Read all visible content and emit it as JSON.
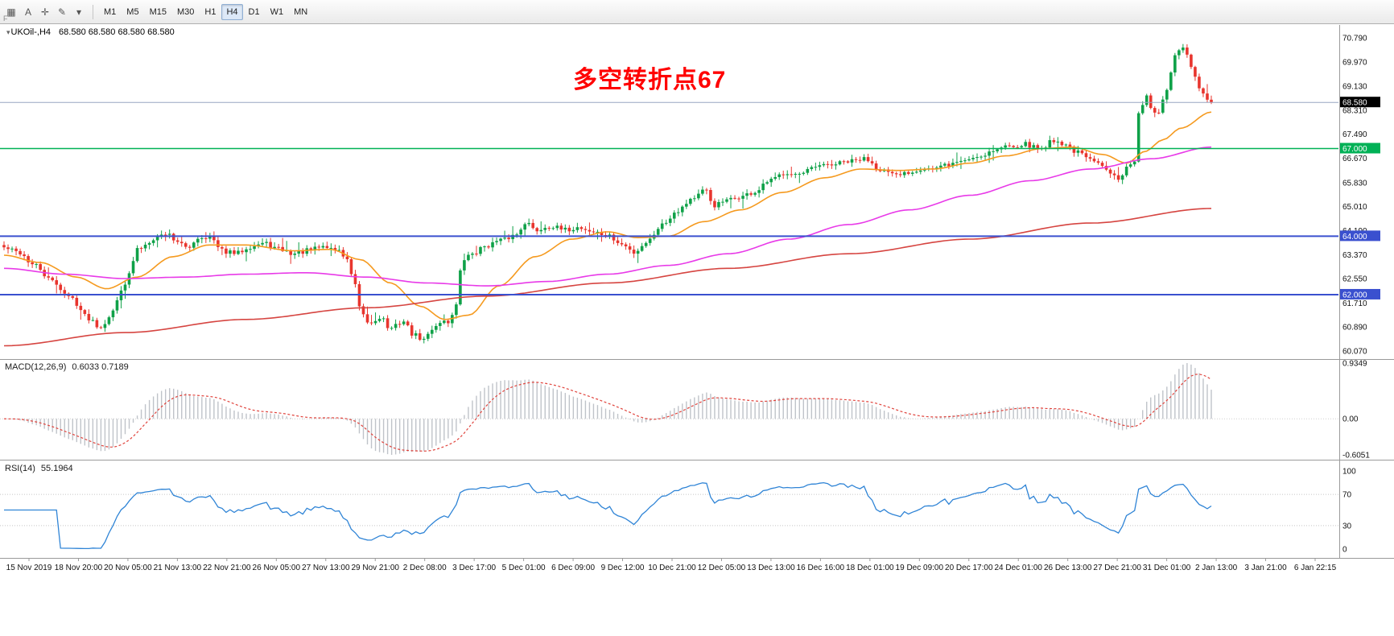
{
  "toolbar": {
    "handle_label": "F",
    "icons": [
      {
        "name": "charts-grid-icon",
        "glyph": "▦"
      },
      {
        "name": "text-label-icon",
        "glyph": "A"
      },
      {
        "name": "crosshair-icon",
        "glyph": "✛"
      },
      {
        "name": "draw-tool-icon",
        "glyph": "✎"
      },
      {
        "name": "dropdown-caret-icon",
        "glyph": "▾"
      }
    ],
    "timeframes": [
      "M1",
      "M5",
      "M15",
      "M30",
      "H1",
      "H4",
      "D1",
      "W1",
      "MN"
    ],
    "active_timeframe": "H4"
  },
  "chart": {
    "marker_icon": "▾",
    "symbol_label": "UKOil-,H4",
    "ohlc_text": "68.580 68.580 68.580 68.580",
    "annotation": {
      "text": "多空转折点67",
      "color": "#ff0000"
    }
  },
  "macd": {
    "label": "MACD(12,26,9)",
    "values_text": "0.6033 0.7189"
  },
  "rsi": {
    "label": "RSI(14)",
    "value_text": "55.1964"
  },
  "chart_data": {
    "type": "candlestick",
    "symbol": "UKOil-",
    "timeframe": "H4",
    "ylim": [
      60.07,
      70.79
    ],
    "n_candles": 300,
    "price_axis": [
      {
        "value": 70.79,
        "label": "70.790"
      },
      {
        "value": 69.97,
        "label": "69.970"
      },
      {
        "value": 69.13,
        "label": "69.130"
      },
      {
        "value": 68.31,
        "label": "68.310"
      },
      {
        "value": 67.49,
        "label": "67.490"
      },
      {
        "value": 66.67,
        "label": "66.670"
      },
      {
        "value": 65.83,
        "label": "65.830"
      },
      {
        "value": 65.01,
        "label": "65.010"
      },
      {
        "value": 64.19,
        "label": "64.190"
      },
      {
        "value": 63.37,
        "label": "63.370"
      },
      {
        "value": 62.55,
        "label": "62.550"
      },
      {
        "value": 61.71,
        "label": "61.710"
      },
      {
        "value": 60.89,
        "label": "60.890"
      },
      {
        "value": 60.07,
        "label": "60.070"
      }
    ],
    "time_labels": [
      "15 Nov 2019",
      "18 Nov 20:00",
      "20 Nov 05:00",
      "21 Nov 13:00",
      "22 Nov 21:00",
      "26 Nov 05:00",
      "27 Nov 13:00",
      "29 Nov 21:00",
      "2 Dec 08:00",
      "3 Dec 17:00",
      "5 Dec 01:00",
      "6 Dec 09:00",
      "9 Dec 12:00",
      "10 Dec 21:00",
      "12 Dec 05:00",
      "13 Dec 13:00",
      "16 Dec 16:00",
      "18 Dec 01:00",
      "19 Dec 09:00",
      "20 Dec 17:00",
      "24 Dec 01:00",
      "26 Dec 13:00",
      "27 Dec 21:00",
      "31 Dec 01:00",
      "2 Jan 13:00",
      "3 Jan 21:00",
      "6 Jan 22:15"
    ],
    "hlines": [
      {
        "name": "turning-line-67",
        "price": 67.0,
        "label": "67.000",
        "color": "#00b156",
        "width": 1.5
      },
      {
        "name": "support-line-64",
        "price": 64.0,
        "label": "64.000",
        "color": "#3a50cf",
        "width": 2
      },
      {
        "name": "support-line-62",
        "price": 62.0,
        "label": "62.000",
        "color": "#3a50cf",
        "width": 2
      }
    ],
    "current_price": {
      "value": 68.58,
      "label": "68.580"
    },
    "close_anchors": [
      [
        0,
        63.6
      ],
      [
        0.012,
        63.45
      ],
      [
        0.025,
        63.0
      ],
      [
        0.04,
        62.45
      ],
      [
        0.055,
        61.9
      ],
      [
        0.07,
        61.2
      ],
      [
        0.08,
        60.9
      ],
      [
        0.088,
        61.3
      ],
      [
        0.1,
        62.4
      ],
      [
        0.112,
        63.6
      ],
      [
        0.125,
        63.95
      ],
      [
        0.135,
        64.1
      ],
      [
        0.143,
        63.85
      ],
      [
        0.152,
        63.55
      ],
      [
        0.16,
        63.95
      ],
      [
        0.17,
        64.0
      ],
      [
        0.18,
        63.5
      ],
      [
        0.192,
        63.4
      ],
      [
        0.203,
        63.65
      ],
      [
        0.215,
        63.75
      ],
      [
        0.228,
        63.55
      ],
      [
        0.24,
        63.4
      ],
      [
        0.252,
        63.5
      ],
      [
        0.264,
        63.65
      ],
      [
        0.275,
        63.55
      ],
      [
        0.283,
        63.3
      ],
      [
        0.29,
        62.4
      ],
      [
        0.296,
        61.3
      ],
      [
        0.303,
        61.0
      ],
      [
        0.312,
        61.25
      ],
      [
        0.32,
        60.8
      ],
      [
        0.33,
        61.1
      ],
      [
        0.34,
        60.6
      ],
      [
        0.348,
        60.45
      ],
      [
        0.355,
        60.85
      ],
      [
        0.362,
        61.1
      ],
      [
        0.368,
        61.05
      ],
      [
        0.374,
        61.6
      ],
      [
        0.38,
        63.2
      ],
      [
        0.39,
        63.45
      ],
      [
        0.4,
        63.7
      ],
      [
        0.412,
        63.85
      ],
      [
        0.424,
        64.05
      ],
      [
        0.432,
        64.5
      ],
      [
        0.44,
        64.2
      ],
      [
        0.452,
        64.35
      ],
      [
        0.464,
        64.2
      ],
      [
        0.476,
        64.3
      ],
      [
        0.488,
        64.15
      ],
      [
        0.5,
        64.0
      ],
      [
        0.512,
        63.7
      ],
      [
        0.522,
        63.45
      ],
      [
        0.532,
        63.8
      ],
      [
        0.545,
        64.4
      ],
      [
        0.558,
        64.9
      ],
      [
        0.57,
        65.3
      ],
      [
        0.581,
        65.55
      ],
      [
        0.588,
        65.05
      ],
      [
        0.598,
        65.2
      ],
      [
        0.61,
        65.35
      ],
      [
        0.622,
        65.5
      ],
      [
        0.635,
        65.9
      ],
      [
        0.648,
        66.2
      ],
      [
        0.66,
        66.1
      ],
      [
        0.672,
        66.35
      ],
      [
        0.685,
        66.45
      ],
      [
        0.7,
        66.55
      ],
      [
        0.714,
        66.65
      ],
      [
        0.726,
        66.3
      ],
      [
        0.738,
        66.05
      ],
      [
        0.75,
        66.2
      ],
      [
        0.762,
        66.35
      ],
      [
        0.771,
        66.3
      ],
      [
        0.782,
        66.45
      ],
      [
        0.795,
        66.6
      ],
      [
        0.808,
        66.75
      ],
      [
        0.82,
        66.95
      ],
      [
        0.832,
        67.1
      ],
      [
        0.845,
        67.15
      ],
      [
        0.858,
        67.0
      ],
      [
        0.87,
        67.3
      ],
      [
        0.88,
        67.1
      ],
      [
        0.89,
        66.85
      ],
      [
        0.9,
        66.6
      ],
      [
        0.91,
        66.4
      ],
      [
        0.918,
        66.2
      ],
      [
        0.924,
        66.0
      ],
      [
        0.93,
        66.35
      ],
      [
        0.936,
        66.5
      ],
      [
        0.941,
        68.4
      ],
      [
        0.946,
        68.85
      ],
      [
        0.951,
        68.35
      ],
      [
        0.956,
        68.15
      ],
      [
        0.961,
        68.75
      ],
      [
        0.966,
        69.5
      ],
      [
        0.971,
        70.2
      ],
      [
        0.975,
        70.55
      ],
      [
        0.98,
        70.15
      ],
      [
        0.985,
        69.55
      ],
      [
        0.99,
        69.05
      ],
      [
        0.995,
        68.75
      ],
      [
        1,
        68.58
      ]
    ],
    "ma_lines": [
      {
        "name": "ma-fast-orange",
        "color": "#f59a1f",
        "anchors": [
          [
            0,
            63.35
          ],
          [
            0.03,
            63.1
          ],
          [
            0.06,
            62.6
          ],
          [
            0.085,
            62.2
          ],
          [
            0.11,
            62.6
          ],
          [
            0.14,
            63.3
          ],
          [
            0.17,
            63.7
          ],
          [
            0.2,
            63.7
          ],
          [
            0.24,
            63.5
          ],
          [
            0.27,
            63.55
          ],
          [
            0.295,
            63.2
          ],
          [
            0.32,
            62.4
          ],
          [
            0.345,
            61.6
          ],
          [
            0.365,
            61.15
          ],
          [
            0.385,
            61.3
          ],
          [
            0.41,
            62.3
          ],
          [
            0.44,
            63.3
          ],
          [
            0.47,
            63.9
          ],
          [
            0.5,
            64.15
          ],
          [
            0.525,
            63.95
          ],
          [
            0.55,
            64.0
          ],
          [
            0.58,
            64.5
          ],
          [
            0.61,
            64.9
          ],
          [
            0.645,
            65.5
          ],
          [
            0.68,
            66.0
          ],
          [
            0.71,
            66.3
          ],
          [
            0.74,
            66.25
          ],
          [
            0.77,
            66.3
          ],
          [
            0.8,
            66.5
          ],
          [
            0.83,
            66.75
          ],
          [
            0.86,
            67.0
          ],
          [
            0.885,
            67.05
          ],
          [
            0.91,
            66.8
          ],
          [
            0.93,
            66.5
          ],
          [
            0.945,
            66.9
          ],
          [
            0.96,
            67.3
          ],
          [
            0.975,
            67.7
          ],
          [
            1,
            68.25
          ]
        ]
      },
      {
        "name": "ma-mid-magenta",
        "color": "#e83ae8",
        "anchors": [
          [
            0,
            62.9
          ],
          [
            0.05,
            62.7
          ],
          [
            0.1,
            62.55
          ],
          [
            0.15,
            62.6
          ],
          [
            0.2,
            62.7
          ],
          [
            0.25,
            62.75
          ],
          [
            0.3,
            62.6
          ],
          [
            0.35,
            62.4
          ],
          [
            0.4,
            62.3
          ],
          [
            0.45,
            62.45
          ],
          [
            0.5,
            62.7
          ],
          [
            0.55,
            63.0
          ],
          [
            0.6,
            63.4
          ],
          [
            0.65,
            63.9
          ],
          [
            0.7,
            64.4
          ],
          [
            0.75,
            64.9
          ],
          [
            0.8,
            65.4
          ],
          [
            0.85,
            65.9
          ],
          [
            0.9,
            66.3
          ],
          [
            0.95,
            66.65
          ],
          [
            1,
            67.05
          ]
        ]
      },
      {
        "name": "ma-slow-red",
        "color": "#d64541",
        "anchors": [
          [
            0,
            60.25
          ],
          [
            0.1,
            60.7
          ],
          [
            0.2,
            61.15
          ],
          [
            0.3,
            61.55
          ],
          [
            0.4,
            61.95
          ],
          [
            0.5,
            62.4
          ],
          [
            0.6,
            62.9
          ],
          [
            0.7,
            63.4
          ],
          [
            0.8,
            63.9
          ],
          [
            0.9,
            64.45
          ],
          [
            1,
            64.95
          ]
        ]
      }
    ],
    "macd": {
      "params": [
        12,
        26,
        9
      ],
      "axis": [
        {
          "value": 0.9349,
          "label": "0.9349"
        },
        {
          "value": 0,
          "label": "0.00"
        },
        {
          "value": -0.6051,
          "label": "-0.6051"
        }
      ]
    },
    "rsi": {
      "period": 14,
      "levels": [
        70,
        30
      ],
      "axis": [
        {
          "value": 100,
          "label": "100"
        },
        {
          "value": 70,
          "label": "70"
        },
        {
          "value": 30,
          "label": "30"
        },
        {
          "value": 0,
          "label": "0"
        }
      ]
    }
  },
  "colors": {
    "up": "#0fa148",
    "down": "#e8352e",
    "macd_hist": "#bfc3c9",
    "macd_signal": "#e0433c",
    "rsi_line": "#2f84d6",
    "level_line": "#c5c5c5",
    "axis_text": "#111111",
    "separator": "#9a9a9a",
    "price_line": "#98a6c2"
  }
}
